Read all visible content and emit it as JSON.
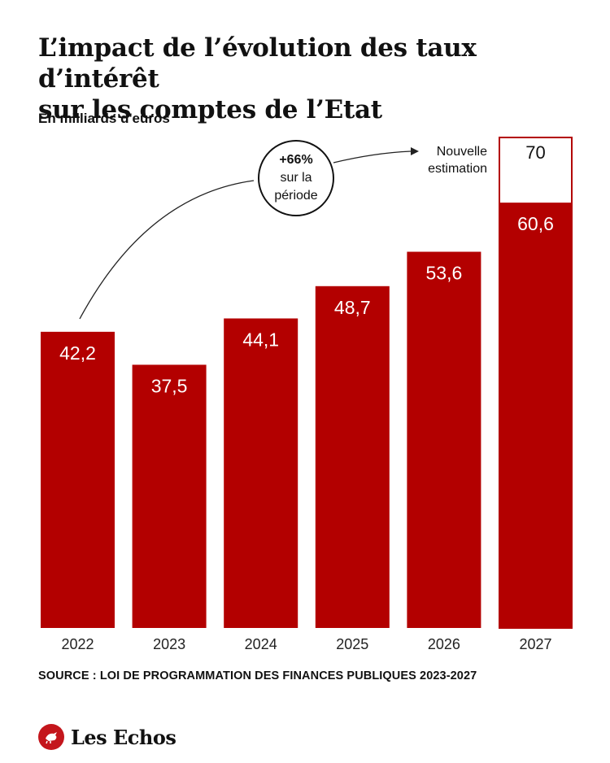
{
  "title": {
    "line1": "L’impact de l’évolution des taux d’intérêt",
    "line2": "sur les comptes de l’Etat"
  },
  "unit_label": "En milliards d'euros",
  "source": "SOURCE : LOI DE PROGRAMMATION DES FINANCES PUBLIQUES 2023-2027",
  "brand": {
    "name": "Les Echos"
  },
  "colors": {
    "bar": "#b30000",
    "outline": "#b30000",
    "text_on_bar": "#ffffff"
  },
  "annotations": {
    "circle_pct": "+66%",
    "circle_line2": "sur la",
    "circle_line3": "période",
    "new_estimate_line1": "Nouvelle",
    "new_estimate_line2": "estimation"
  },
  "chart_data": {
    "type": "bar",
    "title": "L’impact de l’évolution des taux d’intérêt sur les comptes de l’Etat",
    "ylabel": "En milliards d'euros",
    "categories": [
      "2022",
      "2023",
      "2024",
      "2025",
      "2026",
      "2027"
    ],
    "values": [
      42.2,
      37.5,
      44.1,
      48.7,
      53.6,
      60.6
    ],
    "value_labels": [
      "42,2",
      "37,5",
      "44,1",
      "48,7",
      "53,6",
      "60,6"
    ],
    "new_estimate": {
      "category": "2027",
      "value": 70,
      "label": "70"
    },
    "ylim": [
      0,
      70
    ],
    "grid": false
  }
}
